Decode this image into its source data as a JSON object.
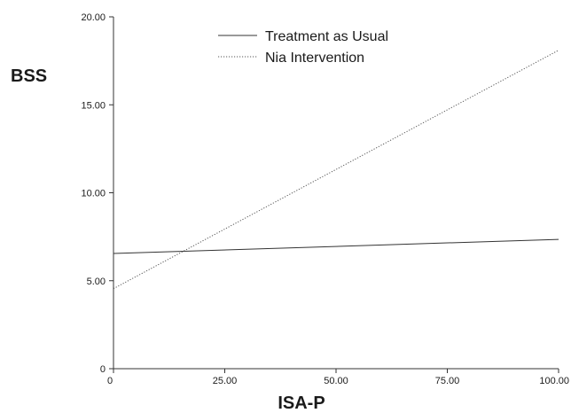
{
  "chart_data": {
    "type": "line",
    "xlabel": "ISA-P",
    "ylabel": "BSS",
    "xlim": [
      0,
      100
    ],
    "ylim": [
      0,
      20
    ],
    "x_ticks": [
      "0",
      "25.00",
      "50.00",
      "75.00",
      "100.00"
    ],
    "x_tick_values": [
      0,
      25,
      50,
      75,
      100
    ],
    "y_ticks": [
      "0",
      "5.00",
      "10.00",
      "15.00",
      "20.00"
    ],
    "y_tick_values": [
      0,
      5,
      10,
      15,
      20
    ],
    "grid": false,
    "legend_position": "top-center",
    "series": [
      {
        "name": "Treatment as Usual",
        "x": [
          0,
          100
        ],
        "y": [
          6.55,
          7.35
        ],
        "style": "solid",
        "color": "#333333"
      },
      {
        "name": "Nia Intervention",
        "x": [
          0,
          100
        ],
        "y": [
          4.55,
          18.1
        ],
        "style": "dotted",
        "color": "#555555"
      }
    ]
  }
}
